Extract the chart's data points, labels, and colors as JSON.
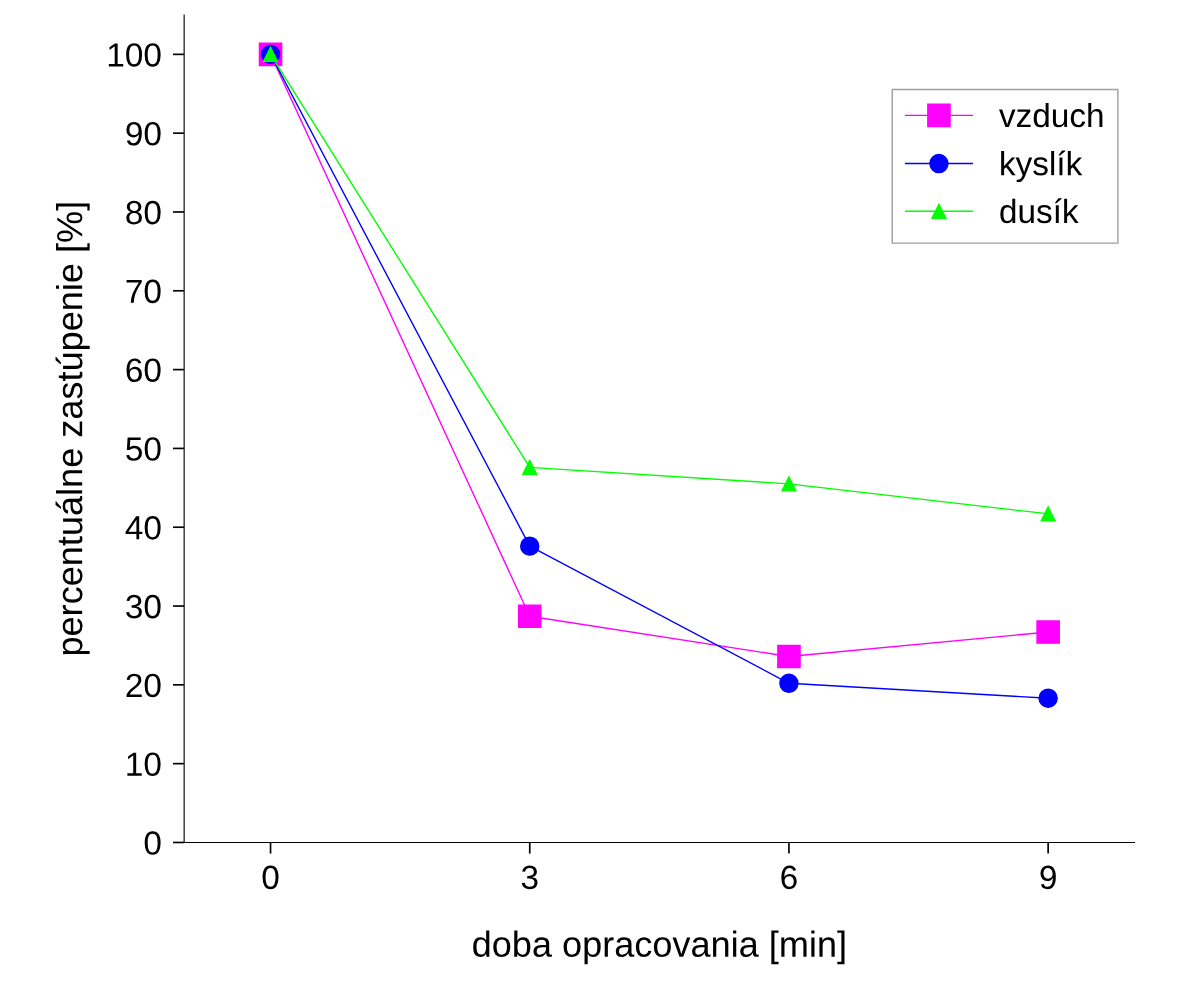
{
  "chart_data": {
    "type": "line",
    "xlabel": "doba opracovania [min]",
    "ylabel": "percentuálne zastúpenie [%]",
    "x": [
      0,
      3,
      6,
      9
    ],
    "series": [
      {
        "name": "vzduch",
        "color": "#ff00ff",
        "marker": "square",
        "values": [
          100,
          28.7,
          23.6,
          26.7
        ]
      },
      {
        "name": "kyslík",
        "color": "#0000ff",
        "marker": "circle",
        "values": [
          100,
          37.6,
          20.2,
          18.3
        ]
      },
      {
        "name": "dusík",
        "color": "#00ff00",
        "marker": "triangle",
        "values": [
          100,
          47.6,
          45.5,
          41.7
        ]
      }
    ],
    "xlim": [
      -1,
      10
    ],
    "xticks": [
      0,
      3,
      6,
      9
    ],
    "ylim": [
      0,
      105
    ],
    "yticks": [
      0,
      10,
      20,
      30,
      40,
      50,
      60,
      70,
      80,
      90,
      100
    ],
    "grid": false,
    "legend": "top right",
    "line_style": "solid"
  }
}
